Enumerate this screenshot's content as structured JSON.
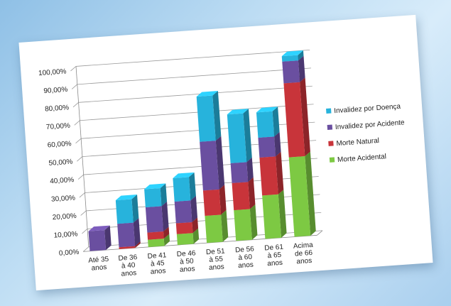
{
  "chart_data": {
    "type": "bar",
    "stacked": true,
    "title": "",
    "xlabel": "",
    "ylabel": "",
    "ylim": [
      0,
      100
    ],
    "y_ticks": [
      "0,00%",
      "10,00%",
      "20,00%",
      "30,00%",
      "40,00%",
      "50,00%",
      "60,00%",
      "70,00%",
      "80,00%",
      "90,00%",
      "100,00%"
    ],
    "categories": [
      [
        "Até 35",
        "anos"
      ],
      [
        "De 36",
        "à 40",
        "anos"
      ],
      [
        "De 41",
        "à 45",
        "anos"
      ],
      [
        "De 46",
        "à 50",
        "anos"
      ],
      [
        "De 51",
        "à 55",
        "anos"
      ],
      [
        "De 56",
        "à 60",
        "anos"
      ],
      [
        "De 61",
        "à 65",
        "anos"
      ],
      [
        "Acima",
        "de 66",
        "anos"
      ]
    ],
    "series": [
      {
        "name": "Morte Acidental",
        "color": "#7dc943",
        "values": [
          0,
          0,
          4,
          6,
          15,
          17,
          24,
          44
        ]
      },
      {
        "name": "Morte Natural",
        "color": "#c8343a",
        "values": [
          0,
          1,
          4,
          6,
          14,
          15,
          21,
          41
        ]
      },
      {
        "name": "Invalidez por Acidente",
        "color": "#6a4fa0",
        "values": [
          11,
          13,
          14,
          12,
          27,
          11,
          11,
          12
        ]
      },
      {
        "name": "Invalidez por Doença",
        "color": "#27b3dc",
        "values": [
          0,
          13,
          10,
          13,
          25,
          27,
          14,
          3
        ]
      }
    ],
    "legend_order": [
      "Invalidez por Doença",
      "Invalidez por Acidente",
      "Morte Natural",
      "Morte Acidental"
    ],
    "legend_position": "right",
    "grid": true
  }
}
